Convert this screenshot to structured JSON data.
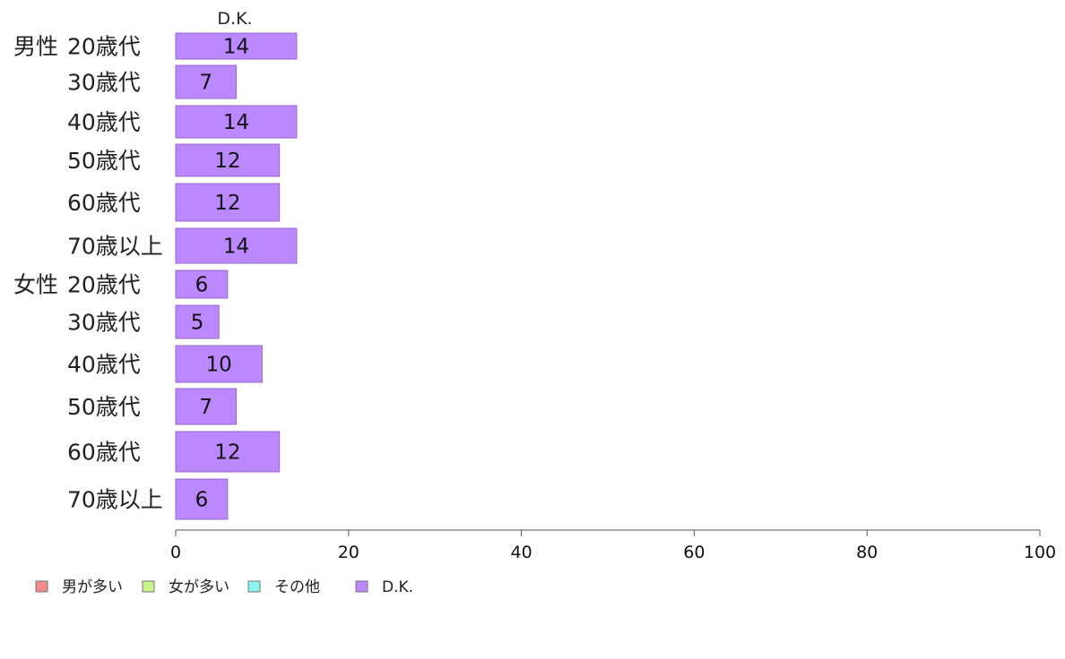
{
  "chart_data": {
    "type": "bar",
    "orientation": "horizontal",
    "stacked": true,
    "series_header": "D.K.",
    "groups": [
      {
        "label": "男性",
        "categories": [
          "20歳代",
          "30歳代",
          "40歳代",
          "50歳代",
          "60歳代",
          "70歳以上"
        ]
      },
      {
        "label": "女性",
        "categories": [
          "20歳代",
          "30歳代",
          "40歳代",
          "50歳代",
          "60歳代",
          "70歳以上"
        ]
      }
    ],
    "series": [
      {
        "name": "男が多い",
        "color": "#f28b8b",
        "values": [
          0,
          0,
          0,
          0,
          0,
          0,
          0,
          0,
          0,
          0,
          0,
          0
        ]
      },
      {
        "name": "女が多い",
        "color": "#c6f58b",
        "values": [
          0,
          0,
          0,
          0,
          0,
          0,
          0,
          0,
          0,
          0,
          0,
          0
        ]
      },
      {
        "name": "その他",
        "color": "#8bf5f0",
        "values": [
          0,
          0,
          0,
          0,
          0,
          0,
          0,
          0,
          0,
          0,
          0,
          0
        ]
      },
      {
        "name": "D.K.",
        "color": "#bb88ff",
        "values": [
          14,
          7,
          14,
          12,
          12,
          14,
          6,
          5,
          10,
          7,
          12,
          6
        ]
      }
    ],
    "data_labels": [
      "14",
      "7",
      "14",
      "12",
      "12",
      "14",
      "6",
      "5",
      "10",
      "7",
      "12",
      "6"
    ],
    "xlim": [
      0,
      100
    ],
    "xticks": [
      "0",
      "20",
      "40",
      "60",
      "80",
      "100"
    ],
    "legend_position": "bottom-left",
    "grid": false
  }
}
